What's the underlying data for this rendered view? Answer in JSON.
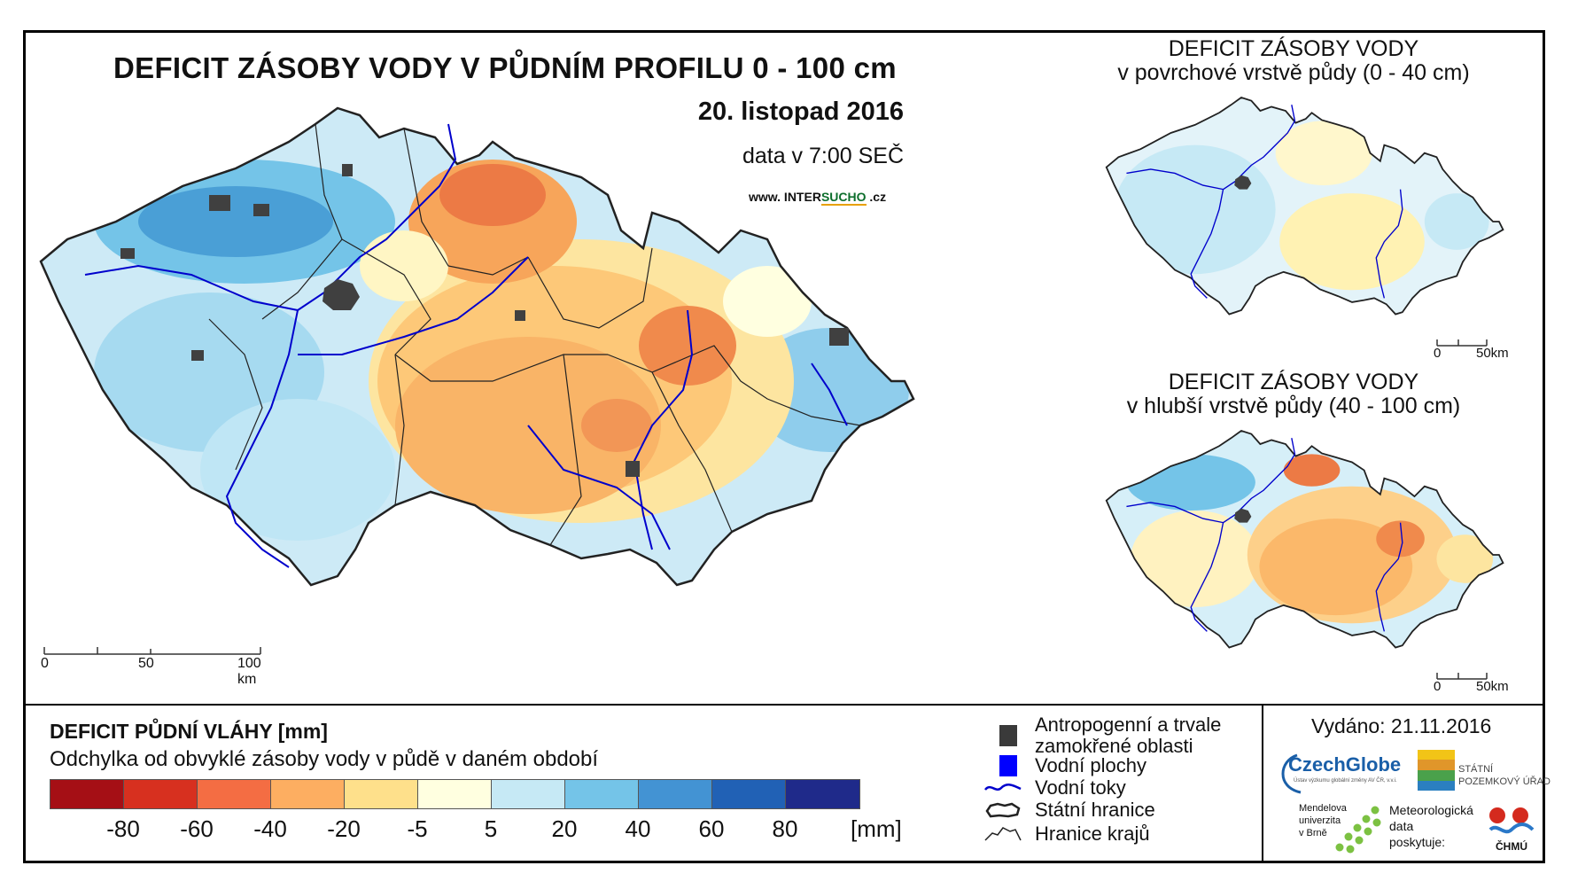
{
  "header": {
    "title": "DEFICIT ZÁSOBY VODY V PŮDNÍM PROFILU 0 - 100 cm",
    "date": "20. listopad 2016",
    "data_time": "data v 7:00 SEČ",
    "website_prefix": "www. INTER",
    "website_brand": "SUCHO",
    "website_suffix": " .cz"
  },
  "main_map": {
    "scalebar_labels": [
      "0",
      "50",
      "100 km"
    ]
  },
  "inset_top": {
    "title_line1": "DEFICIT ZÁSOBY VODY",
    "title_line2": "v povrchové vrstvě půdy (0 - 40 cm)",
    "scalebar_labels": [
      "0",
      "50km"
    ]
  },
  "inset_bottom": {
    "title_line1": "DEFICIT ZÁSOBY VODY",
    "title_line2": "v hlubší vrstvě půdy (40 - 100 cm)",
    "scalebar_labels": [
      "0",
      "50km"
    ]
  },
  "legend": {
    "title": "DEFICIT PŮDNÍ VLÁHY [mm]",
    "subtitle": "Odchylka od obvyklé zásoby vody v půdě v daném období",
    "colors": [
      "#a50f15",
      "#d7301f",
      "#f46d43",
      "#fdae61",
      "#fee08b",
      "#ffffe0",
      "#c6e9f5",
      "#74c4e8",
      "#4393d3",
      "#2161b5",
      "#1f2a8a"
    ],
    "tick_labels": [
      "-80",
      "-60",
      "-40",
      "-20",
      "-5",
      "5",
      "20",
      "40",
      "60",
      "80"
    ],
    "unit": "[mm]"
  },
  "symbols": [
    {
      "label_line1": "Antropogenní a trvale",
      "label_line2": "zamokřené oblasti",
      "icon": "dark-square-icon",
      "color": "#3a3a3a"
    },
    {
      "label_line1": "Vodní plochy",
      "label_line2": "",
      "icon": "blue-square-icon",
      "color": "#0000ff"
    },
    {
      "label_line1": "Vodní toky",
      "label_line2": "",
      "icon": "river-line-icon",
      "color": "#0000cc"
    },
    {
      "label_line1": "Státní hranice",
      "label_line2": "",
      "icon": "state-border-icon",
      "color": "#222222"
    },
    {
      "label_line1": "Hranice krajů",
      "label_line2": "",
      "icon": "region-border-icon",
      "color": "#222222"
    }
  ],
  "issued": {
    "text": "Vydáno: 21.11.2016"
  },
  "logos": {
    "czechglobe_name": "CzechGlobe",
    "czechglobe_sub": "Ústav výzkumu globální změny AV ČR, v.v.i.",
    "spu_line1": "STÁTNÍ",
    "spu_line2": "POZEMKOVÝ ÚŘAD",
    "mendel_line1": "Mendelova",
    "mendel_line2": "univerzita",
    "mendel_line3": "v Brně",
    "met_line1": "Meteorologická",
    "met_line2": "data",
    "met_line3": "poskytuje:",
    "chmu_name": "ČHMÚ"
  }
}
